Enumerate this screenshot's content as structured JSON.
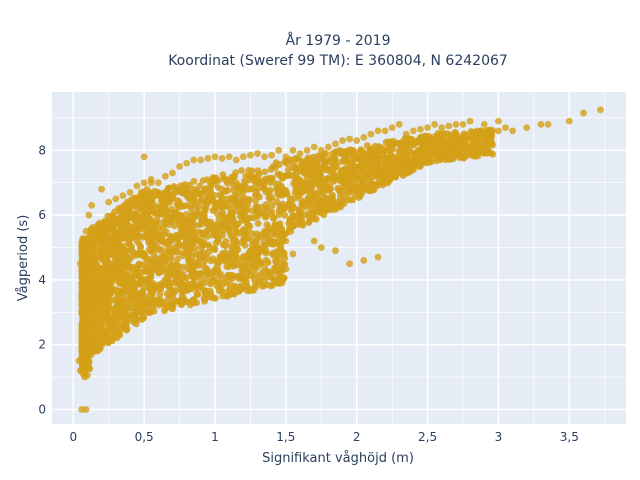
{
  "chart_data": {
    "type": "scatter",
    "title_line1": "År 1979 - 2019",
    "title_line2": "Koordinat (Sweref 99 TM): E 360804, N 6242067",
    "xlabel": "Signifikant våghöjd (m)",
    "ylabel": "Vågperiod (s)",
    "xlim": [
      -0.15,
      3.9
    ],
    "ylim": [
      -0.45,
      9.8
    ],
    "x_ticks": [
      0,
      0.5,
      1,
      1.5,
      2,
      2.5,
      3,
      3.5
    ],
    "x_tick_labels": [
      "0",
      "0,5",
      "1",
      "1,5",
      "2",
      "2,5",
      "3",
      "3,5"
    ],
    "y_ticks": [
      0,
      2,
      4,
      6,
      8
    ],
    "y_tick_labels": [
      "0",
      "2",
      "4",
      "6",
      "8"
    ],
    "grid": true,
    "marker_color": "#D4A017",
    "plot_bg": "#E5ECF6",
    "series": [
      {
        "x": [
          0.05,
          0.07,
          0.08,
          0.1,
          0.06,
          0.09,
          0.04,
          0.06,
          0.08,
          0.1,
          0.12,
          0.15,
          0.05,
          0.07,
          0.09,
          0.11,
          0.13,
          0.2,
          0.25,
          0.3,
          0.35,
          0.4,
          0.45,
          0.5,
          0.55,
          0.6,
          0.65,
          0.7,
          0.75,
          0.8,
          0.85,
          0.9,
          0.95,
          1.0,
          1.05,
          1.1,
          1.15,
          1.2,
          1.25,
          1.3,
          1.35,
          1.4,
          1.45,
          1.5,
          1.55,
          1.6,
          1.65,
          1.7,
          1.75,
          1.8,
          1.85,
          1.9,
          1.95,
          2.0,
          2.05,
          2.1,
          2.15,
          2.2,
          2.25,
          2.3,
          2.35,
          2.4,
          2.45,
          2.5,
          2.55,
          2.6,
          2.65,
          2.7,
          2.75,
          2.8,
          2.85,
          2.9,
          3.0,
          3.05,
          3.1,
          3.2,
          3.3,
          3.35,
          3.5,
          3.6,
          3.72,
          1.95,
          2.05,
          2.15,
          1.85,
          1.75,
          1.7,
          1.55,
          1.45,
          1.35,
          1.3,
          0.5,
          0.55,
          0.1,
          0.2,
          0.3,
          0.15,
          0.25,
          0.35,
          0.45,
          0.6,
          0.7,
          0.8,
          0.9,
          1.0,
          1.1,
          1.2,
          1.3,
          1.4,
          1.5,
          0.15,
          0.25,
          0.35,
          0.45,
          0.55,
          0.65,
          0.75,
          0.85,
          0.95,
          1.05,
          1.15,
          1.25,
          0.08,
          0.12,
          0.18,
          0.22,
          0.28,
          0.32,
          0.38,
          0.42,
          0.48,
          0.52,
          1.6,
          1.7,
          1.8,
          1.9,
          2.0,
          2.1,
          2.2,
          2.3,
          2.4,
          2.5,
          2.6,
          2.7,
          2.8,
          2.9,
          3.0
        ],
        "y": [
          1.2,
          1.1,
          1.0,
          1.05,
          0.0,
          0.0,
          1.5,
          2.0,
          2.5,
          3.0,
          3.5,
          4.0,
          4.5,
          5.0,
          5.5,
          6.0,
          6.3,
          6.8,
          6.4,
          6.5,
          6.6,
          6.7,
          6.9,
          7.0,
          7.1,
          7.0,
          7.2,
          7.3,
          7.5,
          7.6,
          7.7,
          7.7,
          7.75,
          7.8,
          7.75,
          7.8,
          7.7,
          7.8,
          7.85,
          7.9,
          7.8,
          7.85,
          8.0,
          7.8,
          8.0,
          7.9,
          8.0,
          8.1,
          8.0,
          8.1,
          8.2,
          8.3,
          8.35,
          8.3,
          8.4,
          8.5,
          8.6,
          8.6,
          8.7,
          8.8,
          8.5,
          8.6,
          8.65,
          8.7,
          8.8,
          8.7,
          8.75,
          8.8,
          8.8,
          8.9,
          8.6,
          8.8,
          8.9,
          8.7,
          8.6,
          8.7,
          8.8,
          8.8,
          8.9,
          9.15,
          9.25,
          4.5,
          4.6,
          4.7,
          4.9,
          5.0,
          5.2,
          4.8,
          4.2,
          4.4,
          4.5,
          7.8,
          7.0,
          2.2,
          2.5,
          3.0,
          1.8,
          2.1,
          2.6,
          3.0,
          3.3,
          3.6,
          3.8,
          4.0,
          4.3,
          4.5,
          4.7,
          4.9,
          5.1,
          5.2,
          5.5,
          5.8,
          5.9,
          6.0,
          6.1,
          6.3,
          6.4,
          6.5,
          6.6,
          6.8,
          7.0,
          7.2,
          5.0,
          5.2,
          5.5,
          5.8,
          6.0,
          6.2,
          6.4,
          6.5,
          6.7,
          6.8,
          6.5,
          6.6,
          6.8,
          7.0,
          7.2,
          7.4,
          7.5,
          7.7,
          7.9,
          8.1,
          8.2,
          8.3,
          8.4,
          8.5,
          8.6
        ]
      }
    ]
  }
}
